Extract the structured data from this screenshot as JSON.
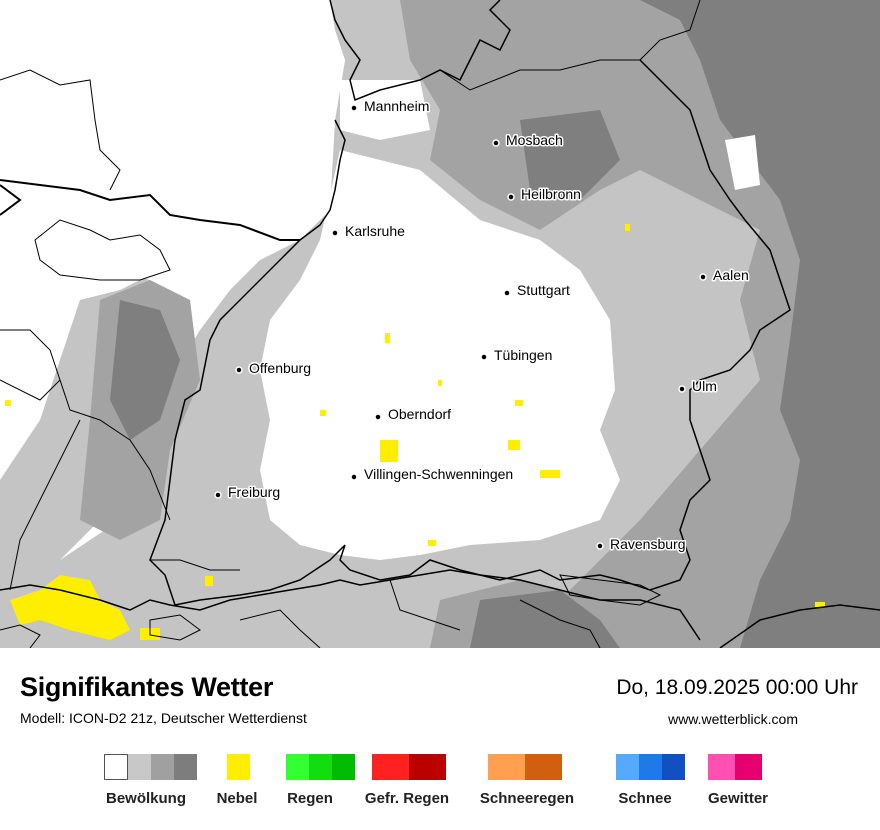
{
  "map": {
    "cities": [
      {
        "name": "Mannheim"
      },
      {
        "name": "Mosbach"
      },
      {
        "name": "Heilbronn"
      },
      {
        "name": "Karlsruhe"
      },
      {
        "name": "Aalen"
      },
      {
        "name": "Stuttgart"
      },
      {
        "name": "Tübingen"
      },
      {
        "name": "Offenburg"
      },
      {
        "name": "Ulm"
      },
      {
        "name": "Oberndorf"
      },
      {
        "name": "Villingen-Schwenningen"
      },
      {
        "name": "Freiburg"
      },
      {
        "name": "Ravensburg"
      }
    ]
  },
  "footer": {
    "title": "Signifikantes Wetter",
    "subtitle": "Modell: ICON-D2 21z, Deutscher Wetterdienst",
    "datetime": "Do, 18.09.2025 00:00 Uhr",
    "url": "www.wetterblick.com"
  },
  "legend": [
    {
      "label": "Bewölkung",
      "colors": [
        "#ffffff",
        "#c8c8c8",
        "#a0a0a0",
        "#7d7d7d"
      ]
    },
    {
      "label": "Nebel",
      "colors": [
        "#ffee00"
      ]
    },
    {
      "label": "Regen",
      "colors": [
        "#33ff33",
        "#11dd11",
        "#00bb00"
      ]
    },
    {
      "label": "Gefr. Regen",
      "colors": [
        "#ff2020",
        "#bb0000"
      ]
    },
    {
      "label": "Schneeregen",
      "colors": [
        "#ffa050",
        "#d06010"
      ]
    },
    {
      "label": "Schnee",
      "colors": [
        "#55aaff",
        "#1e7ae8",
        "#1050c0"
      ]
    },
    {
      "label": "Gewitter",
      "colors": [
        "#ff4fb0",
        "#e6006e"
      ]
    }
  ]
}
